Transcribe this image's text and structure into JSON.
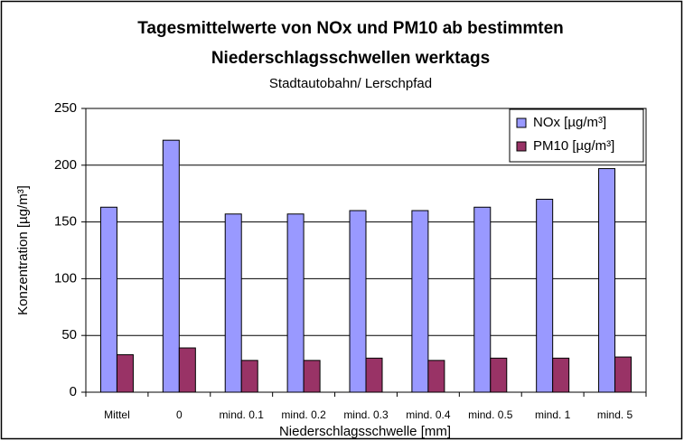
{
  "chart_data": {
    "type": "bar",
    "title": [
      "Tagesmittelwerte von NOx und PM10 ab bestimmten",
      "Niederschlagsschwellen werktags"
    ],
    "subtitle": "Stadtautobahn/ Lerschpfad",
    "x_label": "Niederschlagsschwelle [mm]",
    "y_label": "Konzentration [µg/m³]",
    "categories": [
      "Mittel",
      "0",
      "mind. 0.1",
      "mind. 0.2",
      "mind. 0.3",
      "mind. 0.4",
      "mind. 0.5",
      "mind. 1",
      "mind. 5"
    ],
    "series": [
      {
        "name": "NOx [µg/m³]",
        "color": "#9999ff",
        "values": [
          163,
          222,
          157,
          157,
          160,
          160,
          163,
          170,
          197
        ]
      },
      {
        "name": "PM10 [µg/m³]",
        "color": "#993366",
        "values": [
          33,
          39,
          28,
          28,
          30,
          28,
          30,
          30,
          31
        ]
      }
    ],
    "ylim": [
      0,
      250
    ],
    "yticks": [
      0,
      50,
      100,
      150,
      200,
      250
    ],
    "grid": true,
    "legend": "top-right"
  }
}
